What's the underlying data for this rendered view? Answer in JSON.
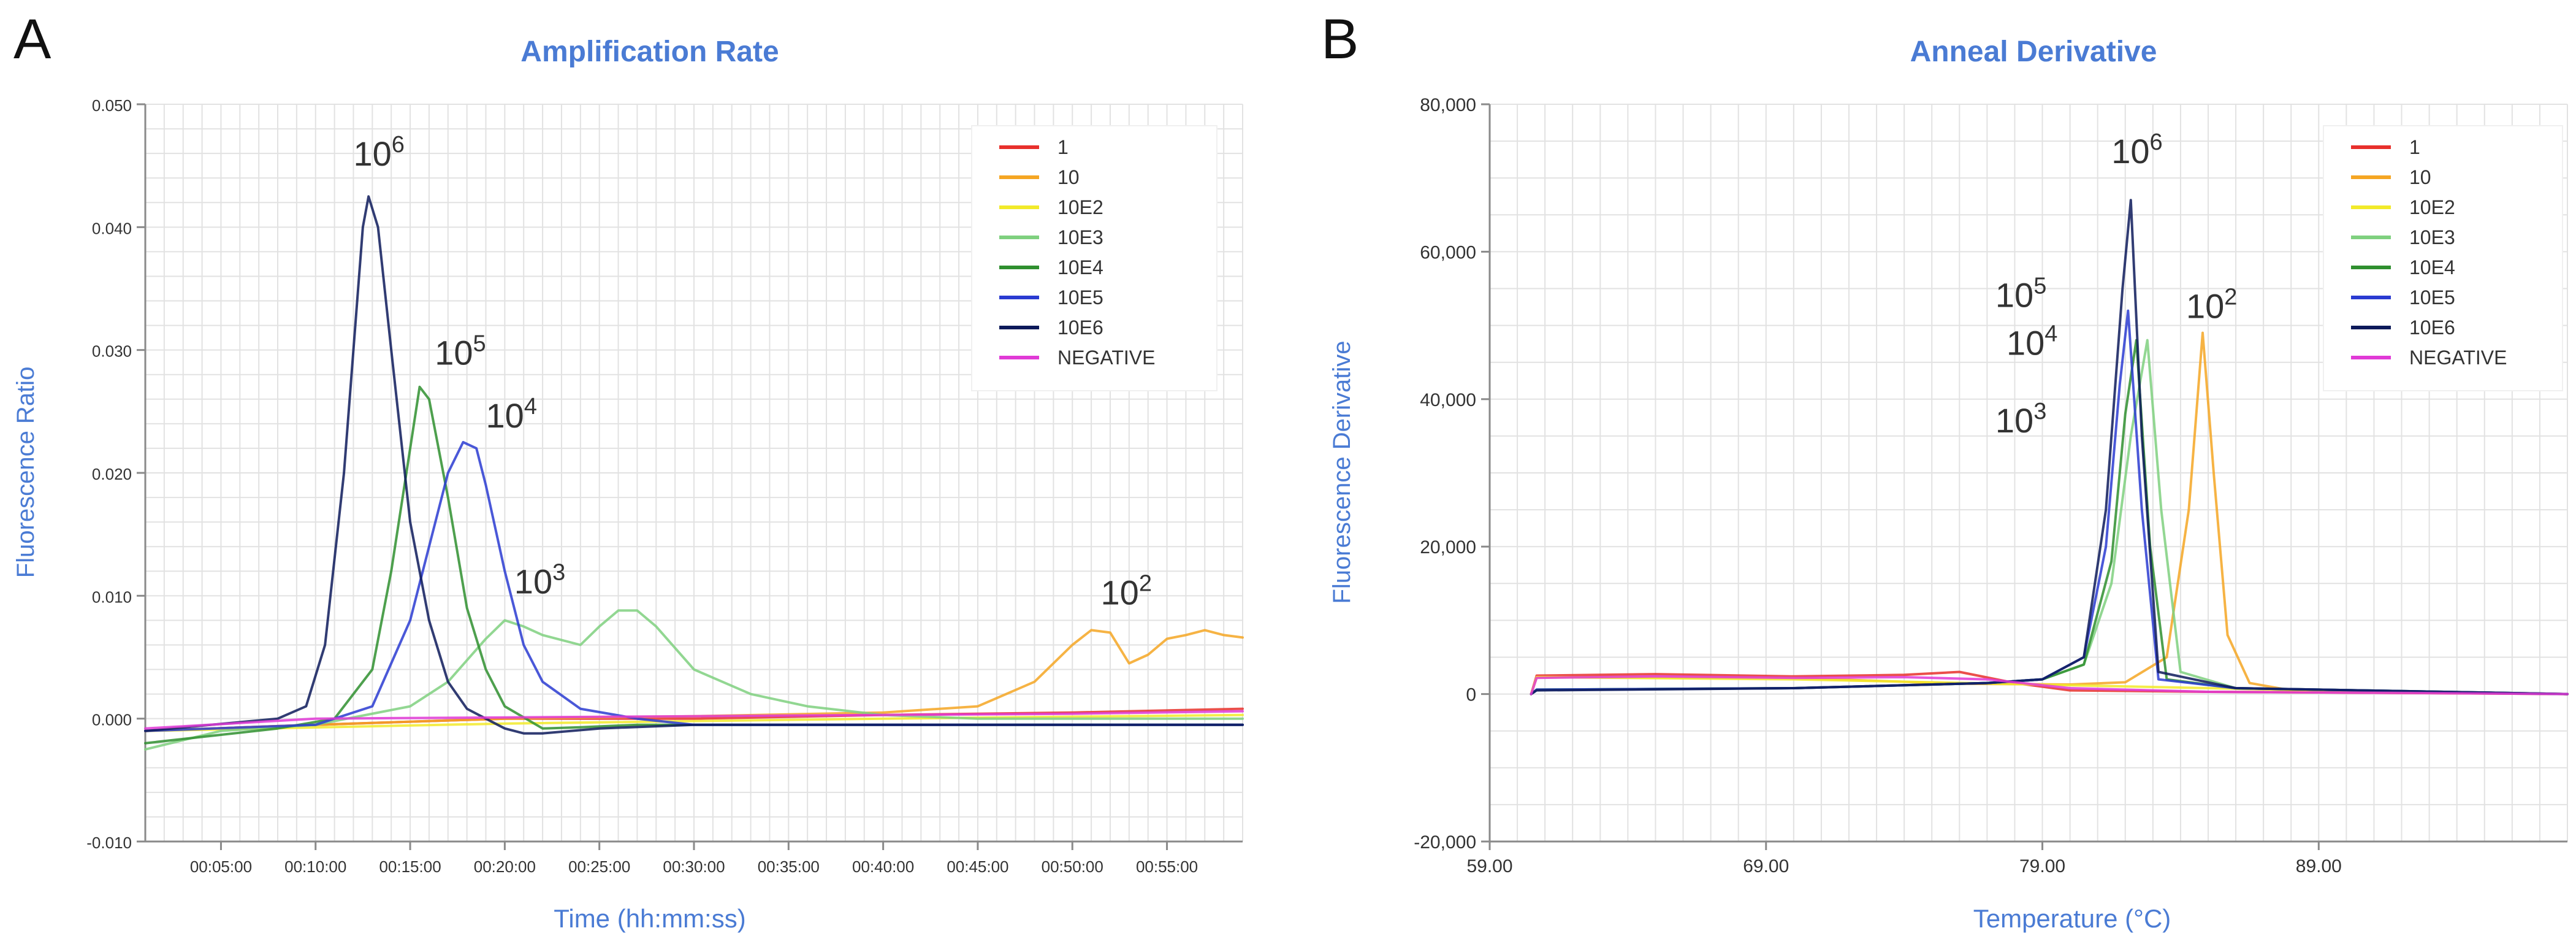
{
  "colors": {
    "1": "#e8302c",
    "10": "#f5a623",
    "10E2": "#f2ea2a",
    "10E3": "#7fd07f",
    "10E4": "#2f8f2f",
    "10E5": "#2a3bd1",
    "10E6": "#0d1a5a",
    "NEGATIVE": "#e03ad6",
    "title": "#4a7bd4",
    "axis_label": "#4a7bd4",
    "peak_10E6": "#6f6fb8",
    "peak_10E5": "#5aa95a",
    "peak_10E4": "#6a6ad0",
    "peak_10E3": "#9bdc9b",
    "peak_10E2": "#f0c070"
  },
  "chart_data": [
    {
      "panel": "A",
      "type": "line",
      "title": "Amplification Rate",
      "xlabel": "Time (hh:mm:ss)",
      "ylabel": "Fluorescence Ratio",
      "xlim": [
        1,
        59
      ],
      "ylim": [
        -0.01,
        0.05
      ],
      "grid": true,
      "legend_position": "top-right",
      "x_ticks": [
        {
          "v": 5,
          "label": "00:05:00"
        },
        {
          "v": 10,
          "label": "00:10:00"
        },
        {
          "v": 15,
          "label": "00:15:00"
        },
        {
          "v": 20,
          "label": "00:20:00"
        },
        {
          "v": 25,
          "label": "00:25:00"
        },
        {
          "v": 30,
          "label": "00:30:00"
        },
        {
          "v": 35,
          "label": "00:35:00"
        },
        {
          "v": 40,
          "label": "00:40:00"
        },
        {
          "v": 45,
          "label": "00:45:00"
        },
        {
          "v": 50,
          "label": "00:50:00"
        },
        {
          "v": 55,
          "label": "00:55:00"
        }
      ],
      "y_ticks": [
        {
          "v": 0.05,
          "label": "0.050"
        },
        {
          "v": 0.04,
          "label": "0.040"
        },
        {
          "v": 0.03,
          "label": "0.030"
        },
        {
          "v": 0.02,
          "label": "0.020"
        },
        {
          "v": 0.01,
          "label": "0.010"
        },
        {
          "v": 0.0,
          "label": "0.000"
        },
        {
          "v": -0.01,
          "label": "-0.010"
        }
      ],
      "series": [
        {
          "name": "1",
          "color_key": "1",
          "x": [
            1,
            10,
            20,
            30,
            40,
            50,
            59
          ],
          "y": [
            -0.001,
            -0.0005,
            0.0,
            0.0,
            0.0003,
            0.0005,
            0.0008
          ]
        },
        {
          "name": "10",
          "color_key": "10",
          "x": [
            1,
            10,
            20,
            30,
            40,
            45,
            48,
            50,
            51,
            52,
            53,
            54,
            55,
            56,
            57,
            58,
            59
          ],
          "y": [
            -0.001,
            -0.0005,
            0.0,
            0.0002,
            0.0005,
            0.001,
            0.003,
            0.006,
            0.0072,
            0.007,
            0.0045,
            0.0052,
            0.0065,
            0.0068,
            0.0072,
            0.0068,
            0.0066
          ]
        },
        {
          "name": "10E2",
          "color_key": "10E2",
          "x": [
            1,
            20,
            40,
            59
          ],
          "y": [
            -0.001,
            -0.0004,
            0.0,
            0.0003
          ]
        },
        {
          "name": "10E3",
          "color_key": "10E3",
          "x": [
            1,
            5,
            10,
            15,
            17,
            19,
            20,
            21,
            22,
            24,
            25,
            26,
            27,
            28,
            30,
            33,
            36,
            40,
            45,
            50,
            59
          ],
          "y": [
            -0.0025,
            -0.001,
            -0.0005,
            0.001,
            0.003,
            0.0065,
            0.008,
            0.0075,
            0.0068,
            0.006,
            0.0075,
            0.0088,
            0.0088,
            0.0075,
            0.004,
            0.002,
            0.001,
            0.0003,
            0.0,
            0.0,
            0.0
          ]
        },
        {
          "name": "10E4",
          "color_key": "10E4",
          "x": [
            1,
            8,
            11,
            13,
            14,
            15,
            15.5,
            16,
            17,
            18,
            19,
            20,
            22,
            24,
            27,
            30,
            40,
            59
          ],
          "y": [
            -0.002,
            -0.0008,
            0.0,
            0.004,
            0.012,
            0.022,
            0.027,
            0.026,
            0.018,
            0.009,
            0.004,
            0.001,
            -0.0008,
            -0.0007,
            -0.0005,
            -0.0005,
            -0.0005,
            -0.0005
          ]
        },
        {
          "name": "10E5",
          "color_key": "10E5",
          "x": [
            1,
            10,
            13,
            15,
            16,
            17,
            17.8,
            18.5,
            19,
            20,
            21,
            22,
            24,
            27,
            30,
            40,
            59
          ],
          "y": [
            -0.001,
            -0.0005,
            0.001,
            0.008,
            0.014,
            0.02,
            0.0225,
            0.022,
            0.019,
            0.012,
            0.006,
            0.003,
            0.0008,
            0.0,
            -0.0005,
            -0.0005,
            -0.0005
          ]
        },
        {
          "name": "10E6",
          "color_key": "10E6",
          "x": [
            1,
            8,
            9.5,
            10.5,
            11.5,
            12.5,
            12.8,
            13.3,
            14,
            15,
            16,
            17,
            18,
            19,
            20,
            21,
            22,
            25,
            30,
            40,
            59
          ],
          "y": [
            -0.001,
            0.0,
            0.001,
            0.006,
            0.02,
            0.04,
            0.0425,
            0.04,
            0.03,
            0.016,
            0.008,
            0.003,
            0.0008,
            0.0,
            -0.0008,
            -0.0012,
            -0.0012,
            -0.0008,
            -0.0005,
            -0.0005,
            -0.0005
          ]
        },
        {
          "name": "NEGATIVE",
          "color_key": "NEGATIVE",
          "x": [
            1,
            10,
            20,
            30,
            40,
            50,
            59
          ],
          "y": [
            -0.0008,
            0.0,
            0.0001,
            0.0002,
            0.0003,
            0.0004,
            0.0006
          ]
        }
      ],
      "peak_labels": [
        {
          "base": "10",
          "exp": "6",
          "x": 12.0,
          "y": 0.045
        },
        {
          "base": "10",
          "exp": "5",
          "x": 16.3,
          "y": 0.0288
        },
        {
          "base": "10",
          "exp": "4",
          "x": 19.0,
          "y": 0.0237
        },
        {
          "base": "10",
          "exp": "3",
          "x": 20.5,
          "y": 0.0102
        },
        {
          "base": "10",
          "exp": "2",
          "x": 51.5,
          "y": 0.0093
        }
      ]
    },
    {
      "panel": "B",
      "type": "line",
      "title": "Anneal Derivative",
      "xlabel": "Temperature (°C)",
      "ylabel": "Fluorescence Derivative",
      "xlim": [
        59,
        98
      ],
      "ylim": [
        -20000,
        80000
      ],
      "grid": true,
      "legend_position": "top-right",
      "x_ticks": [
        {
          "v": 59,
          "label": "59.00"
        },
        {
          "v": 69,
          "label": "69.00"
        },
        {
          "v": 79,
          "label": "79.00"
        },
        {
          "v": 89,
          "label": "89.00"
        }
      ],
      "y_ticks": [
        {
          "v": 80000,
          "label": "80,000"
        },
        {
          "v": 60000,
          "label": "60,000"
        },
        {
          "v": 40000,
          "label": "40,000"
        },
        {
          "v": 20000,
          "label": "20,000"
        },
        {
          "v": 0,
          "label": "0"
        },
        {
          "v": -20000,
          "label": "-20,000"
        }
      ],
      "series": [
        {
          "name": "1",
          "color_key": "1",
          "x": [
            60.5,
            60.7,
            65,
            70,
            74,
            76,
            78,
            80,
            85,
            90,
            98
          ],
          "y": [
            0,
            2500,
            2700,
            2400,
            2600,
            3000,
            1500,
            500,
            300,
            200,
            0
          ]
        },
        {
          "name": "10",
          "color_key": "10",
          "x": [
            60.5,
            60.7,
            70,
            76,
            80,
            82,
            83.5,
            84.3,
            84.8,
            85.2,
            85.7,
            86.5,
            88,
            98
          ],
          "y": [
            0,
            2300,
            2200,
            1400,
            1300,
            1600,
            5000,
            25000,
            49000,
            30000,
            8000,
            1500,
            500,
            0
          ]
        },
        {
          "name": "10E2",
          "color_key": "10E2",
          "x": [
            60.5,
            60.7,
            70,
            80,
            90,
            98
          ],
          "y": [
            0,
            2300,
            2000,
            1200,
            400,
            0
          ]
        },
        {
          "name": "10E3",
          "color_key": "10E3",
          "x": [
            60.5,
            60.7,
            70,
            77,
            79,
            80.5,
            81.5,
            82.2,
            82.8,
            83.3,
            84,
            86,
            98
          ],
          "y": [
            0,
            600,
            800,
            1500,
            2000,
            4000,
            15000,
            35000,
            48000,
            25000,
            3000,
            800,
            0
          ]
        },
        {
          "name": "10E4",
          "color_key": "10E4",
          "x": [
            60.5,
            60.7,
            70,
            77,
            79,
            80.5,
            81.5,
            82,
            82.4,
            82.9,
            83.5,
            86,
            98
          ],
          "y": [
            0,
            600,
            800,
            1500,
            2000,
            4000,
            18000,
            38000,
            48000,
            20000,
            2000,
            800,
            0
          ]
        },
        {
          "name": "10E5",
          "color_key": "10E5",
          "x": [
            60.5,
            60.7,
            70,
            77,
            79,
            80.5,
            81.3,
            81.8,
            82.1,
            82.6,
            83.2,
            86,
            98
          ],
          "y": [
            0,
            600,
            800,
            1500,
            2000,
            5000,
            20000,
            42000,
            52000,
            25000,
            2000,
            800,
            0
          ]
        },
        {
          "name": "10E6",
          "color_key": "10E6",
          "x": [
            60.5,
            60.7,
            70,
            77,
            79,
            80.5,
            81.3,
            81.9,
            82.2,
            82.6,
            83.2,
            86,
            98
          ],
          "y": [
            0,
            500,
            800,
            1500,
            2000,
            5000,
            25000,
            55000,
            67000,
            35000,
            3000,
            800,
            0
          ]
        },
        {
          "name": "NEGATIVE",
          "color_key": "NEGATIVE",
          "x": [
            60.5,
            60.7,
            65,
            70,
            74,
            77,
            80,
            85,
            90,
            98
          ],
          "y": [
            0,
            2200,
            2400,
            2200,
            2300,
            2000,
            800,
            300,
            200,
            0
          ]
        }
      ],
      "peak_labels": [
        {
          "base": "10",
          "exp": "6",
          "x": 81.5,
          "y": 72000
        },
        {
          "base": "10",
          "exp": "5",
          "x": 77.3,
          "y": 52500
        },
        {
          "base": "10",
          "exp": "2",
          "x": 84.2,
          "y": 51000
        },
        {
          "base": "10",
          "exp": "4",
          "x": 77.7,
          "y": 46000
        },
        {
          "base": "10",
          "exp": "3",
          "x": 77.3,
          "y": 35500
        }
      ]
    }
  ],
  "panels": [
    {
      "letter": "A"
    },
    {
      "letter": "B"
    }
  ],
  "legend": {
    "entries": [
      {
        "label": "1",
        "color_key": "1"
      },
      {
        "label": "10",
        "color_key": "10"
      },
      {
        "label": "10E2",
        "color_key": "10E2"
      },
      {
        "label": "10E3",
        "color_key": "10E3"
      },
      {
        "label": "10E4",
        "color_key": "10E4"
      },
      {
        "label": "10E5",
        "color_key": "10E5"
      },
      {
        "label": "10E6",
        "color_key": "10E6"
      },
      {
        "label": "NEGATIVE",
        "color_key": "NEGATIVE"
      }
    ]
  }
}
